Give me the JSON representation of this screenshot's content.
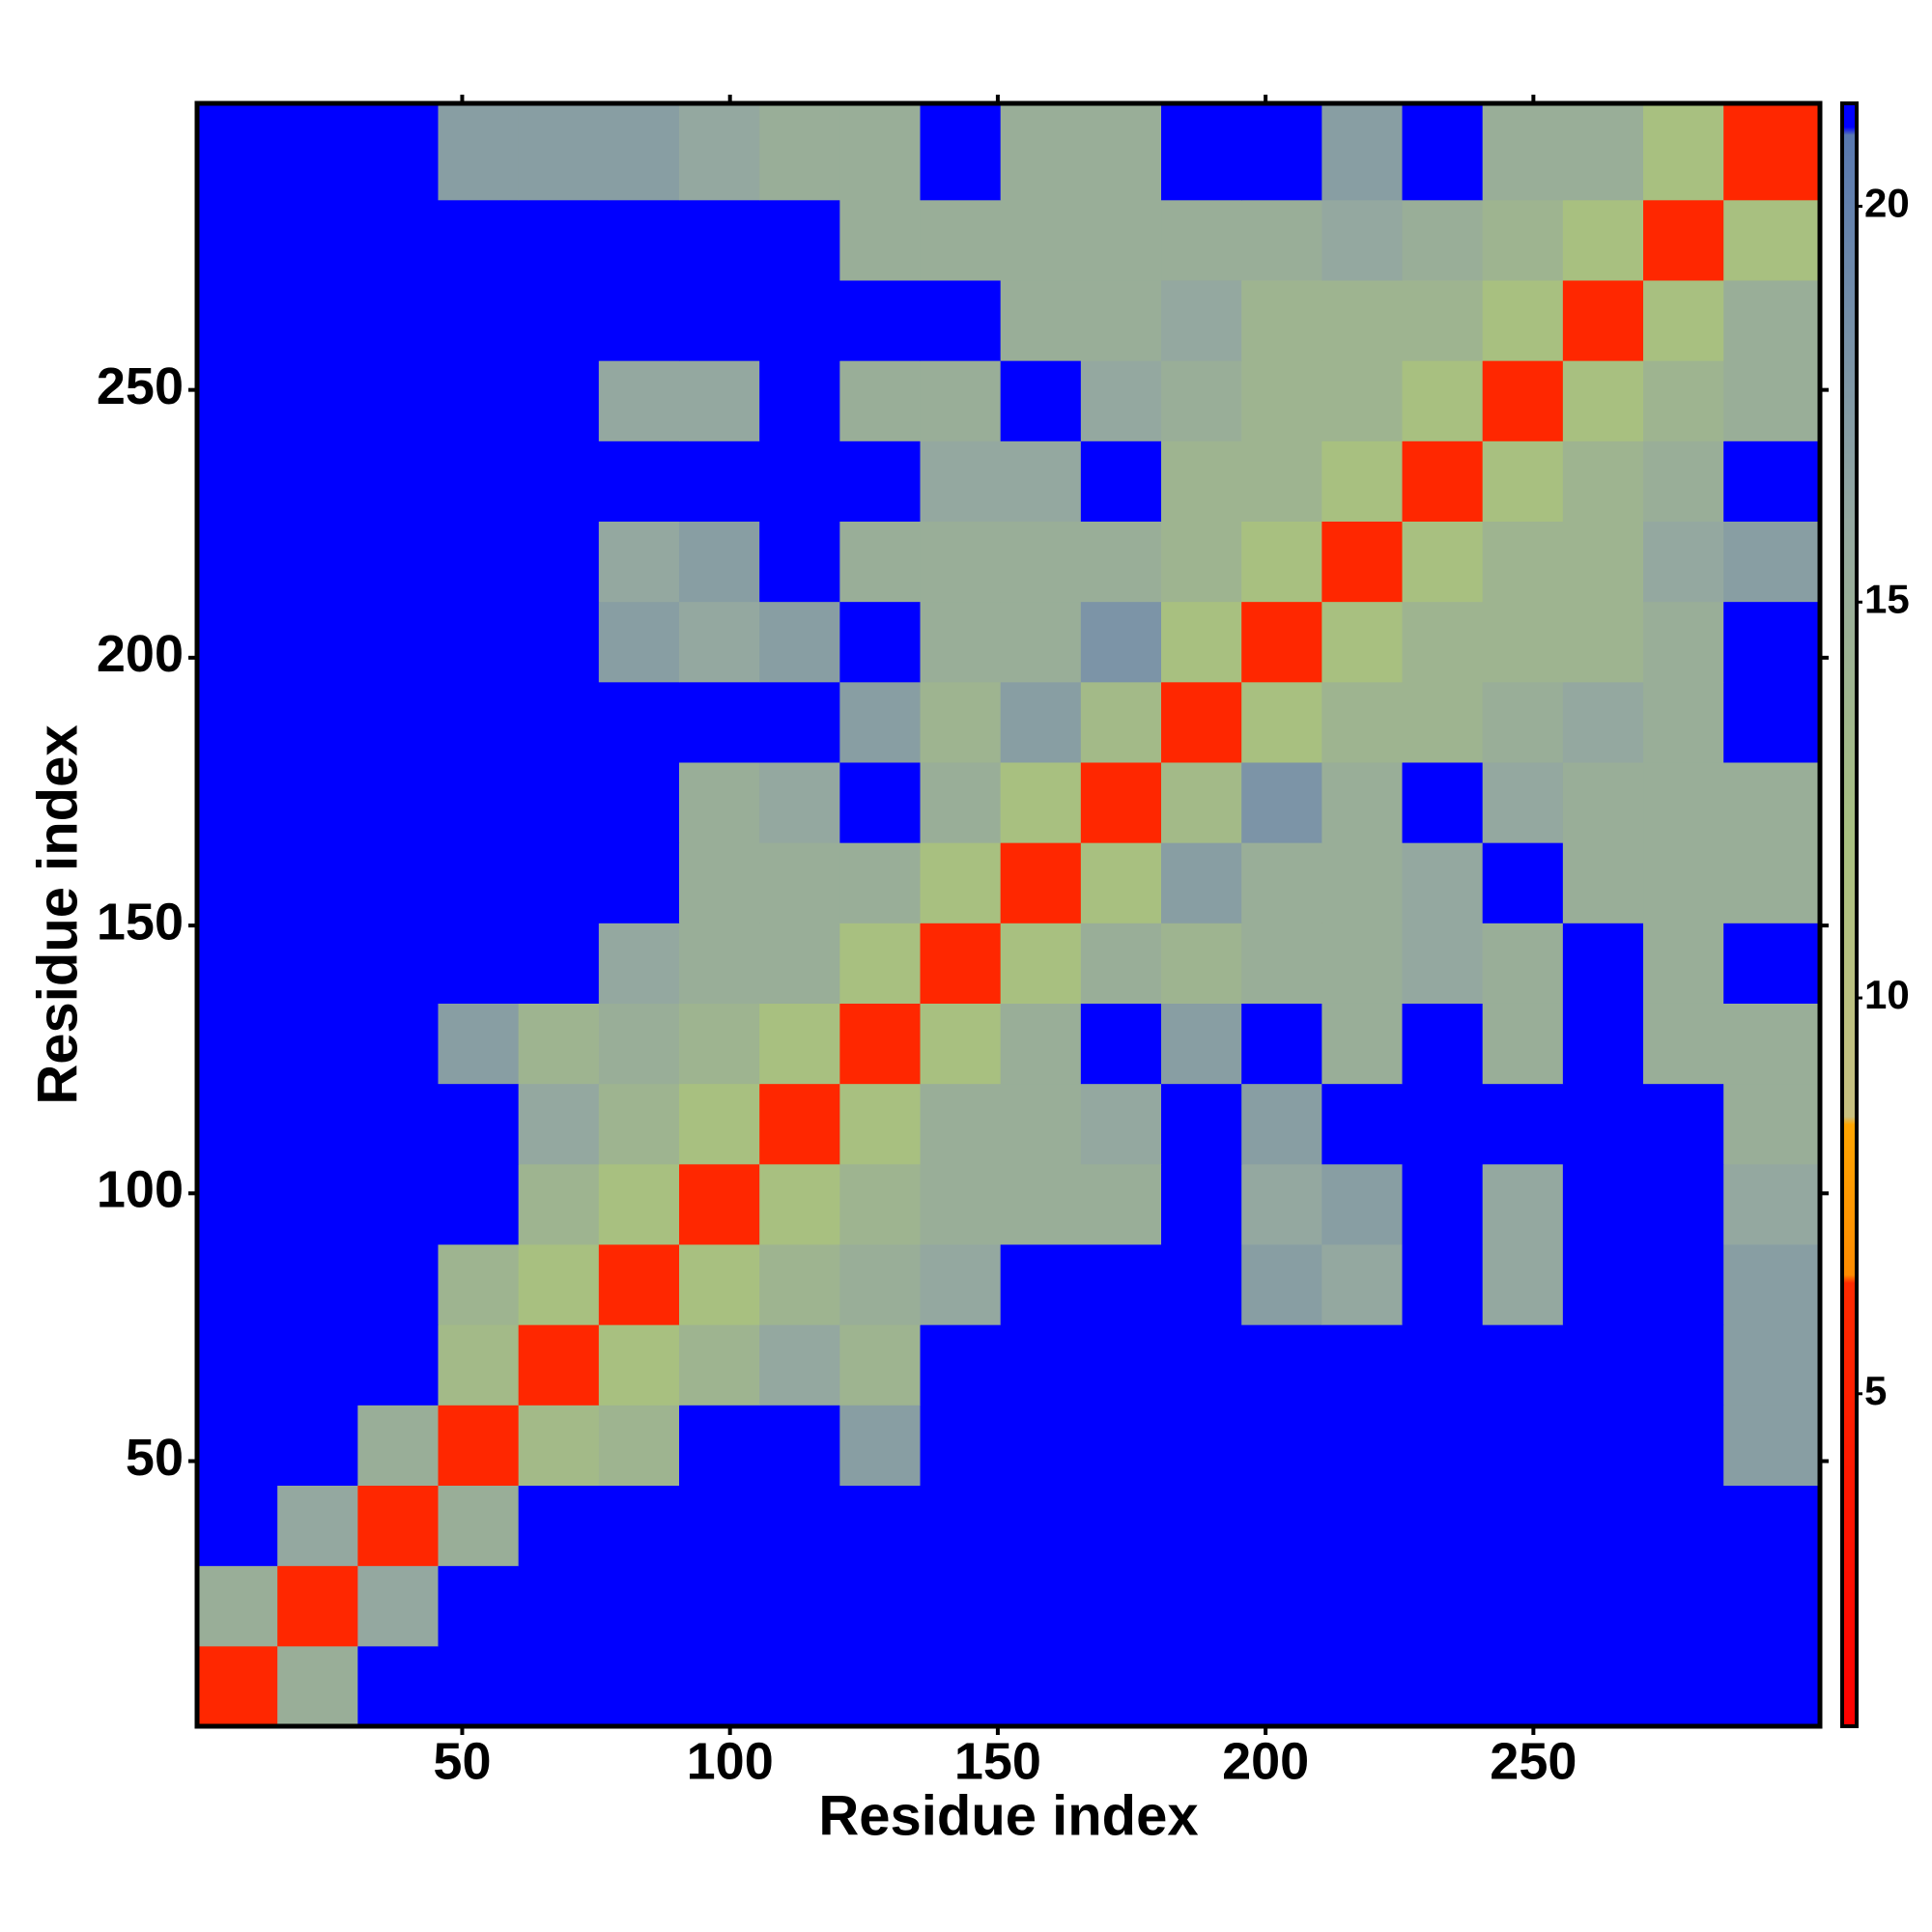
{
  "chart_data": {
    "type": "heatmap",
    "xlabel": "Residue index",
    "ylabel": "Residue index",
    "xlim": [
      0.5,
      303.5
    ],
    "ylim": [
      0.5,
      303.5
    ],
    "xticks": [
      50,
      100,
      150,
      200,
      250
    ],
    "yticks": [
      50,
      100,
      150,
      200,
      250
    ],
    "xbins": [
      0.5,
      15.5,
      30.5,
      45.5,
      60.5,
      75.5,
      90.5,
      105.5,
      120.5,
      135.5,
      150.5,
      165.5,
      180.5,
      195.5,
      210.5,
      225.5,
      240.5,
      255.5,
      270.5,
      285.5,
      303.5
    ],
    "ybins": [
      0.5,
      15.5,
      30.5,
      45.5,
      60.5,
      75.5,
      90.5,
      105.5,
      120.5,
      135.5,
      150.5,
      165.5,
      180.5,
      195.5,
      210.5,
      225.5,
      240.5,
      255.5,
      270.5,
      285.5,
      303.5
    ],
    "z": [
      [
        6,
        15,
        21,
        21,
        21,
        21,
        21,
        21,
        21,
        21,
        21,
        21,
        21,
        21,
        21,
        21,
        21,
        21,
        21,
        21
      ],
      [
        15,
        6,
        16,
        21,
        21,
        21,
        21,
        21,
        21,
        21,
        21,
        21,
        21,
        21,
        21,
        21,
        21,
        21,
        21,
        21
      ],
      [
        21,
        16,
        6,
        15,
        21,
        21,
        21,
        21,
        21,
        21,
        21,
        21,
        21,
        21,
        21,
        21,
        21,
        21,
        21,
        21
      ],
      [
        21,
        21,
        15,
        6,
        13,
        14,
        21,
        21,
        17,
        21,
        21,
        21,
        21,
        21,
        21,
        21,
        21,
        21,
        21,
        17
      ],
      [
        21,
        21,
        21,
        13,
        6,
        12,
        14,
        16,
        14,
        21,
        21,
        21,
        21,
        21,
        21,
        21,
        21,
        21,
        21,
        17
      ],
      [
        21,
        21,
        21,
        14,
        12,
        6,
        12,
        14,
        15,
        16,
        21,
        21,
        21,
        17,
        16,
        21,
        16,
        21,
        21,
        17
      ],
      [
        21,
        21,
        21,
        21,
        14,
        12,
        6,
        12,
        14,
        15,
        15,
        15,
        21,
        16,
        17,
        21,
        16,
        21,
        21,
        16
      ],
      [
        21,
        21,
        21,
        21,
        16,
        14,
        12,
        6,
        12,
        15,
        15,
        16,
        21,
        17,
        21,
        21,
        21,
        21,
        21,
        15
      ],
      [
        21,
        21,
        21,
        17,
        14,
        15,
        14,
        12,
        6,
        12,
        15,
        21,
        17,
        21,
        15,
        21,
        15,
        21,
        15,
        15
      ],
      [
        21,
        21,
        21,
        21,
        21,
        16,
        15,
        15,
        12,
        6,
        12,
        15,
        14,
        15,
        15,
        16,
        15,
        21,
        15,
        21
      ],
      [
        21,
        21,
        21,
        21,
        21,
        21,
        15,
        15,
        15,
        12,
        6,
        12,
        17,
        15,
        15,
        16,
        21,
        15,
        15,
        15
      ],
      [
        21,
        21,
        21,
        21,
        21,
        21,
        15,
        16,
        21,
        15,
        12,
        6,
        13,
        18,
        15,
        21,
        16,
        15,
        15,
        15
      ],
      [
        21,
        21,
        21,
        21,
        21,
        21,
        21,
        21,
        17,
        14,
        17,
        13,
        6,
        12,
        14,
        14,
        15,
        16,
        15,
        21
      ],
      [
        21,
        21,
        21,
        21,
        21,
        17,
        16,
        17,
        21,
        15,
        15,
        18,
        12,
        6,
        12,
        14,
        14,
        14,
        15,
        21
      ],
      [
        21,
        21,
        21,
        21,
        21,
        16,
        17,
        21,
        15,
        15,
        15,
        15,
        14,
        12,
        6,
        12,
        14,
        14,
        16,
        17
      ],
      [
        21,
        21,
        21,
        21,
        21,
        21,
        21,
        21,
        21,
        16,
        16,
        21,
        14,
        14,
        12,
        6,
        12,
        14,
        15,
        21
      ],
      [
        21,
        21,
        21,
        21,
        21,
        16,
        16,
        21,
        15,
        15,
        21,
        16,
        15,
        14,
        14,
        12,
        6,
        12,
        14,
        15
      ],
      [
        21,
        21,
        21,
        21,
        21,
        21,
        21,
        21,
        21,
        21,
        15,
        15,
        16,
        14,
        14,
        14,
        12,
        6,
        12,
        15
      ],
      [
        21,
        21,
        21,
        21,
        21,
        21,
        21,
        21,
        15,
        15,
        15,
        15,
        15,
        15,
        16,
        15,
        14,
        12,
        6,
        12
      ],
      [
        21,
        21,
        21,
        17,
        17,
        17,
        16,
        15,
        15,
        21,
        15,
        15,
        21,
        21,
        17,
        21,
        15,
        15,
        12,
        6
      ]
    ],
    "zlim": [
      0.8,
      21.3
    ],
    "zticks": [
      5,
      10,
      15,
      20
    ],
    "colorscale": [
      [
        0.8,
        "#ff0000"
      ],
      [
        6.4,
        "#ff2a00"
      ],
      [
        6.5,
        "#ff8c00"
      ],
      [
        8.4,
        "#ffa500"
      ],
      [
        8.5,
        "#c8c080"
      ],
      [
        12,
        "#a8c080"
      ],
      [
        16,
        "#94a8a0"
      ],
      [
        20.9,
        "#5878b0"
      ],
      [
        21,
        "#0000ff"
      ],
      [
        21.3,
        "#0000ff"
      ]
    ]
  }
}
